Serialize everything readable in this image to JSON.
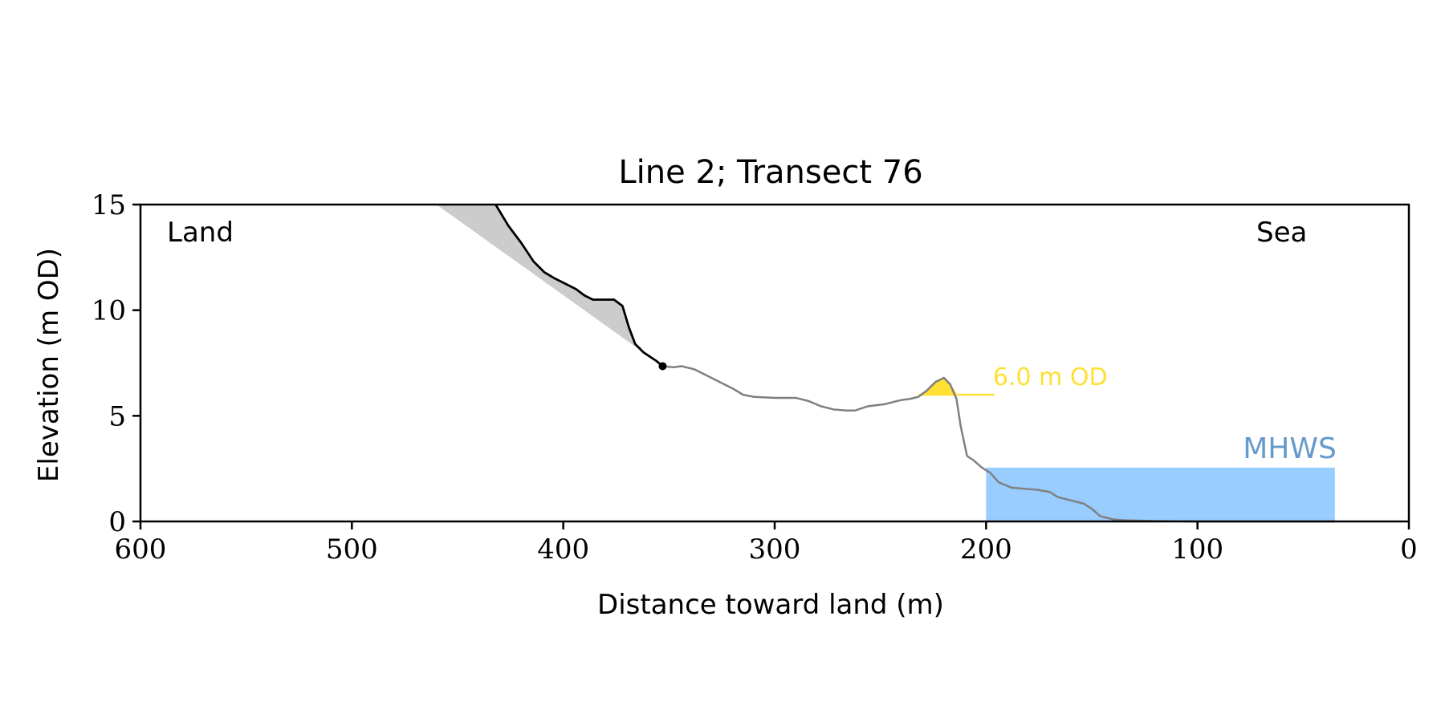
{
  "chart_data": {
    "type": "line",
    "title": "Line 2; Transect 76",
    "xlabel": "Distance toward land (m)",
    "ylabel": "Elevation (m OD)",
    "xlim": [
      600,
      0
    ],
    "ylim": [
      0,
      15
    ],
    "x_ticks": [
      600,
      500,
      400,
      300,
      200,
      100,
      0
    ],
    "y_ticks": [
      0,
      5,
      10,
      15
    ],
    "grid": false,
    "annotations": {
      "land_label": "Land",
      "sea_label": "Sea",
      "threshold_label": "6.0 m OD",
      "mhws_label": "MHWS"
    },
    "threshold": {
      "elevation": 6.0,
      "x_start": 232,
      "x_end": 196
    },
    "mhws": {
      "elevation": 2.55,
      "x_start": 200,
      "x_end": 35
    },
    "cliff_top_point": {
      "x": 353,
      "y": 7.35
    },
    "series": [
      {
        "key": "cliff_profile",
        "color": "#000000",
        "x": [
          432,
          426,
          420,
          414,
          409,
          404,
          400,
          394,
          390,
          386,
          382,
          376,
          372,
          369,
          366,
          362,
          356,
          353
        ],
        "y": [
          15.0,
          14.0,
          13.2,
          12.3,
          11.8,
          11.5,
          11.3,
          11.0,
          10.7,
          10.5,
          10.5,
          10.5,
          10.2,
          9.2,
          8.4,
          8.0,
          7.6,
          7.35
        ]
      },
      {
        "key": "ground_profile",
        "color": "#808080",
        "x": [
          353,
          348,
          344,
          338,
          332,
          326,
          320,
          315,
          310,
          300,
          290,
          284,
          278,
          272,
          266,
          262,
          256,
          252,
          248,
          244,
          240,
          236,
          232,
          228,
          224,
          220,
          217,
          214,
          212,
          209,
          206,
          202,
          198,
          194,
          188,
          182,
          176,
          170,
          166,
          160,
          154,
          150,
          146,
          140,
          134,
          120,
          100,
          80,
          60,
          40,
          35
        ],
        "y": [
          7.35,
          7.3,
          7.35,
          7.2,
          6.9,
          6.6,
          6.3,
          6.0,
          5.9,
          5.85,
          5.85,
          5.7,
          5.45,
          5.3,
          5.25,
          5.25,
          5.45,
          5.5,
          5.55,
          5.65,
          5.75,
          5.8,
          5.9,
          6.2,
          6.6,
          6.8,
          6.5,
          5.8,
          4.5,
          3.1,
          2.9,
          2.55,
          2.3,
          1.85,
          1.6,
          1.55,
          1.5,
          1.4,
          1.15,
          1.0,
          0.85,
          0.6,
          0.25,
          0.1,
          0.05,
          0.02,
          0.0,
          0.0,
          0.0,
          0.0,
          0.0
        ]
      }
    ],
    "colors": {
      "cliff_line": "#000000",
      "ground_line": "#808080",
      "cliff_wedge_fill": "#cccccc",
      "threshold": "#ffe033",
      "mhws_fill": "#99ccff",
      "mhws_text": "#6699cc"
    }
  }
}
